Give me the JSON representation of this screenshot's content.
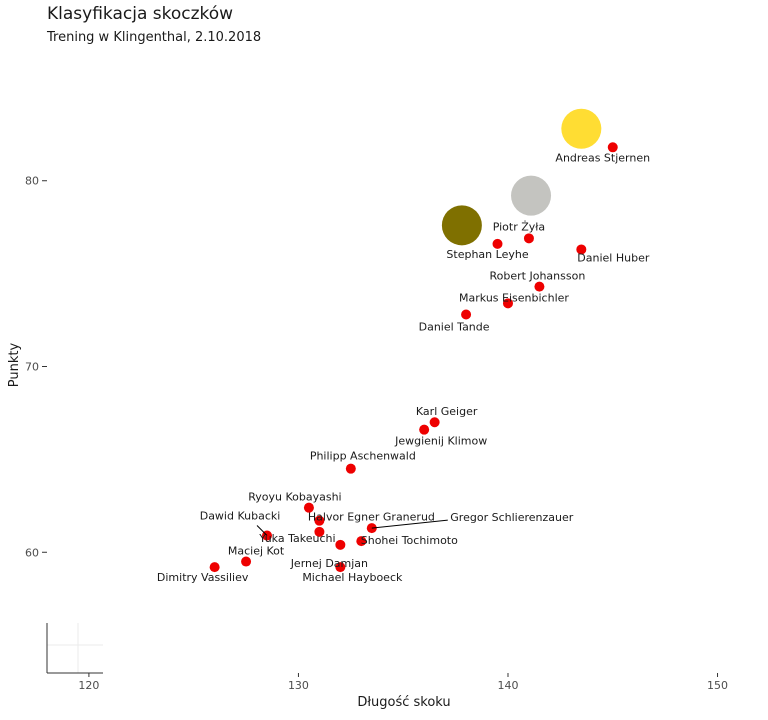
{
  "chart_data": {
    "type": "scatter",
    "title": "Klasyfikacja skoczków",
    "subtitle": "Trening w Klingenthal, 2.10.2018",
    "xlabel": "Długość skoku",
    "ylabel": "Punkty",
    "xlim": [
      118,
      150.5
    ],
    "ylim": [
      53.5,
      86.5
    ],
    "x_ticks": [
      120,
      130,
      140,
      150
    ],
    "y_ticks": [
      60,
      70,
      80
    ],
    "grid": false,
    "colors": {
      "point": "#ee0000",
      "gold": "#ffdd33",
      "silver": "#c4c4c0",
      "bronze": "#7f7000",
      "axis": "#333333",
      "tick_text": "#4d4d4d"
    },
    "medals": [
      {
        "rank": 1,
        "x": 143.5,
        "y": 82.8,
        "color": "#ffdd33"
      },
      {
        "rank": 2,
        "x": 141.1,
        "y": 79.2,
        "color": "#c4c4c0"
      },
      {
        "rank": 3,
        "x": 137.8,
        "y": 77.6,
        "color": "#7f7000"
      }
    ],
    "points": [
      {
        "name": "Andreas Stjernen",
        "x": 145.0,
        "y": 81.8
      },
      {
        "name": "Piotr Żyła",
        "x": 141.0,
        "y": 76.9
      },
      {
        "name": "Stephan Leyhe",
        "x": 139.5,
        "y": 76.6
      },
      {
        "name": "Daniel Huber",
        "x": 143.5,
        "y": 76.3
      },
      {
        "name": "Robert Johansson",
        "x": 141.5,
        "y": 74.3
      },
      {
        "name": "Markus Eisenbichler",
        "x": 140.0,
        "y": 73.4
      },
      {
        "name": "Daniel Tande",
        "x": 138.0,
        "y": 72.8
      },
      {
        "name": "Karl Geiger",
        "x": 136.5,
        "y": 67.0
      },
      {
        "name": "Jewgienij Klimow",
        "x": 136.0,
        "y": 66.6
      },
      {
        "name": "Philipp Aschenwald",
        "x": 132.5,
        "y": 64.5
      },
      {
        "name": "Ryoyu Kobayashi",
        "x": 130.5,
        "y": 62.4
      },
      {
        "name": "Halvor Egner Granerud",
        "x": 131.0,
        "y": 61.7
      },
      {
        "name": "Gregor Schlierenzauer",
        "x": 133.5,
        "y": 61.3
      },
      {
        "name": "Yuka Takeuchi",
        "x": 131.0,
        "y": 61.1
      },
      {
        "name": "Dawid Kubacki",
        "x": 128.5,
        "y": 60.9
      },
      {
        "name": "Shohei Tochimoto",
        "x": 133.0,
        "y": 60.6
      },
      {
        "name": "Jernej Damjan",
        "x": 132.0,
        "y": 60.4
      },
      {
        "name": "Maciej Kot",
        "x": 127.5,
        "y": 59.5
      },
      {
        "name": "Michael Hayboeck",
        "x": 132.0,
        "y": 59.2
      },
      {
        "name": "Dimitry Vassiliev",
        "x": 126.0,
        "y": 59.2
      }
    ]
  }
}
